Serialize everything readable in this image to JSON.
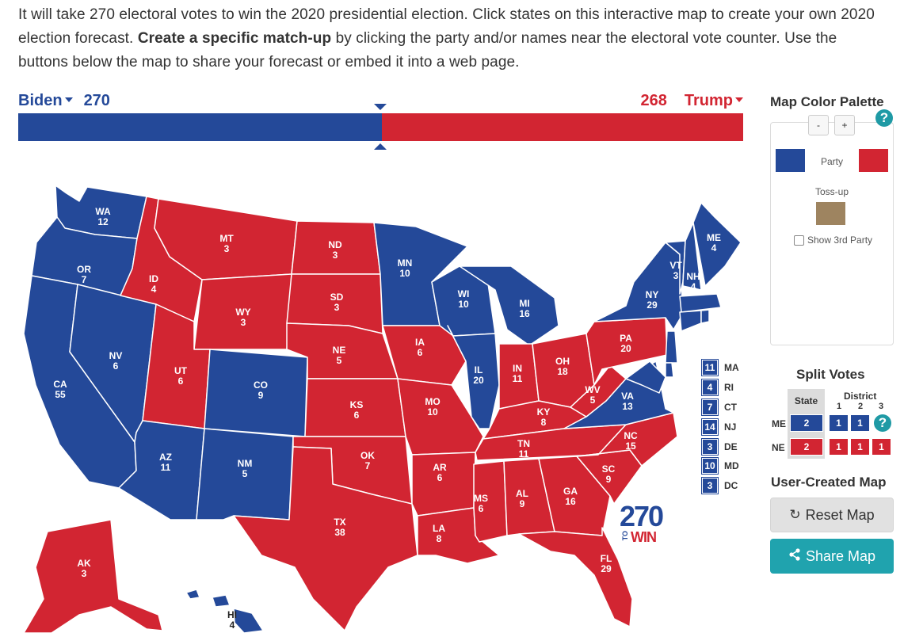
{
  "intro": {
    "part1": "It will take 270 electoral votes to win the 2020 presidential election. Click states on this interactive map to create your own 2020 election forecast. ",
    "bold": "Create a specific match-up",
    "part2": " by clicking the party and/or names near the electoral vote counter. Use the buttons below the map to share your forecast or embed it into a web page."
  },
  "candidates": {
    "dem": {
      "name": "Biden",
      "votes": "270"
    },
    "rep": {
      "name": "Trump",
      "votes": "268"
    }
  },
  "colors": {
    "dem": "#244999",
    "rep": "#d22532",
    "tossup": "#9e8460",
    "accent": "#20a3ae"
  },
  "states": [
    {
      "abbr": "WA",
      "ev": "12",
      "party": "dem"
    },
    {
      "abbr": "OR",
      "ev": "7",
      "party": "dem"
    },
    {
      "abbr": "CA",
      "ev": "55",
      "party": "dem"
    },
    {
      "abbr": "NV",
      "ev": "6",
      "party": "dem"
    },
    {
      "abbr": "ID",
      "ev": "4",
      "party": "rep"
    },
    {
      "abbr": "MT",
      "ev": "3",
      "party": "rep"
    },
    {
      "abbr": "WY",
      "ev": "3",
      "party": "rep"
    },
    {
      "abbr": "UT",
      "ev": "6",
      "party": "rep"
    },
    {
      "abbr": "AZ",
      "ev": "11",
      "party": "dem"
    },
    {
      "abbr": "CO",
      "ev": "9",
      "party": "dem"
    },
    {
      "abbr": "NM",
      "ev": "5",
      "party": "dem"
    },
    {
      "abbr": "ND",
      "ev": "3",
      "party": "rep"
    },
    {
      "abbr": "SD",
      "ev": "3",
      "party": "rep"
    },
    {
      "abbr": "NE",
      "ev": "5",
      "party": "rep"
    },
    {
      "abbr": "KS",
      "ev": "6",
      "party": "rep"
    },
    {
      "abbr": "OK",
      "ev": "7",
      "party": "rep"
    },
    {
      "abbr": "TX",
      "ev": "38",
      "party": "rep"
    },
    {
      "abbr": "MN",
      "ev": "10",
      "party": "dem"
    },
    {
      "abbr": "IA",
      "ev": "6",
      "party": "rep"
    },
    {
      "abbr": "MO",
      "ev": "10",
      "party": "rep"
    },
    {
      "abbr": "AR",
      "ev": "6",
      "party": "rep"
    },
    {
      "abbr": "LA",
      "ev": "8",
      "party": "rep"
    },
    {
      "abbr": "WI",
      "ev": "10",
      "party": "dem"
    },
    {
      "abbr": "IL",
      "ev": "20",
      "party": "dem"
    },
    {
      "abbr": "MI",
      "ev": "16",
      "party": "dem"
    },
    {
      "abbr": "IN",
      "ev": "11",
      "party": "rep"
    },
    {
      "abbr": "OH",
      "ev": "18",
      "party": "rep"
    },
    {
      "abbr": "KY",
      "ev": "8",
      "party": "rep"
    },
    {
      "abbr": "TN",
      "ev": "11",
      "party": "rep"
    },
    {
      "abbr": "MS",
      "ev": "6",
      "party": "rep"
    },
    {
      "abbr": "AL",
      "ev": "9",
      "party": "rep"
    },
    {
      "abbr": "GA",
      "ev": "16",
      "party": "rep"
    },
    {
      "abbr": "FL",
      "ev": "29",
      "party": "rep"
    },
    {
      "abbr": "SC",
      "ev": "9",
      "party": "rep"
    },
    {
      "abbr": "NC",
      "ev": "15",
      "party": "rep"
    },
    {
      "abbr": "VA",
      "ev": "13",
      "party": "dem"
    },
    {
      "abbr": "WV",
      "ev": "5",
      "party": "rep"
    },
    {
      "abbr": "PA",
      "ev": "20",
      "party": "rep"
    },
    {
      "abbr": "NY",
      "ev": "29",
      "party": "dem"
    },
    {
      "abbr": "VT",
      "ev": "3",
      "party": "dem"
    },
    {
      "abbr": "NH",
      "ev": "4",
      "party": "dem"
    },
    {
      "abbr": "ME",
      "ev": "4",
      "party": "dem"
    },
    {
      "abbr": "AK",
      "ev": "3",
      "party": "rep"
    },
    {
      "abbr": "HI",
      "ev": "4",
      "party": "dem"
    }
  ],
  "small_states": [
    {
      "abbr": "MA",
      "ev": "11"
    },
    {
      "abbr": "RI",
      "ev": "4"
    },
    {
      "abbr": "CT",
      "ev": "7"
    },
    {
      "abbr": "NJ",
      "ev": "14"
    },
    {
      "abbr": "DE",
      "ev": "3"
    },
    {
      "abbr": "MD",
      "ev": "10"
    },
    {
      "abbr": "DC",
      "ev": "3"
    }
  ],
  "logo": {
    "number": "270",
    "to": "TO",
    "win": "WIN"
  },
  "palette": {
    "title": "Map Color Palette",
    "minus": "-",
    "plus": "+",
    "help": "?",
    "party_label": "Party",
    "tossup_label": "Toss-up",
    "third_party_label": "Show 3rd Party"
  },
  "split_votes": {
    "title": "Split Votes",
    "state_header": "State",
    "district_header": "District",
    "districts": [
      "1",
      "2",
      "3"
    ],
    "rows": [
      {
        "state": "ME",
        "state_votes": "2",
        "state_party": "dem",
        "districts": [
          {
            "v": "1",
            "party": "dem"
          },
          {
            "v": "1",
            "party": "dem"
          }
        ]
      },
      {
        "state": "NE",
        "state_votes": "2",
        "state_party": "rep",
        "districts": [
          {
            "v": "1",
            "party": "rep"
          },
          {
            "v": "1",
            "party": "rep"
          },
          {
            "v": "1",
            "party": "rep"
          }
        ]
      }
    ],
    "help": "?"
  },
  "user_map": {
    "title": "User-Created Map",
    "reset_label": "Reset Map",
    "reset_icon": "refresh-icon",
    "share_label": "Share Map",
    "share_icon": "share-icon"
  }
}
